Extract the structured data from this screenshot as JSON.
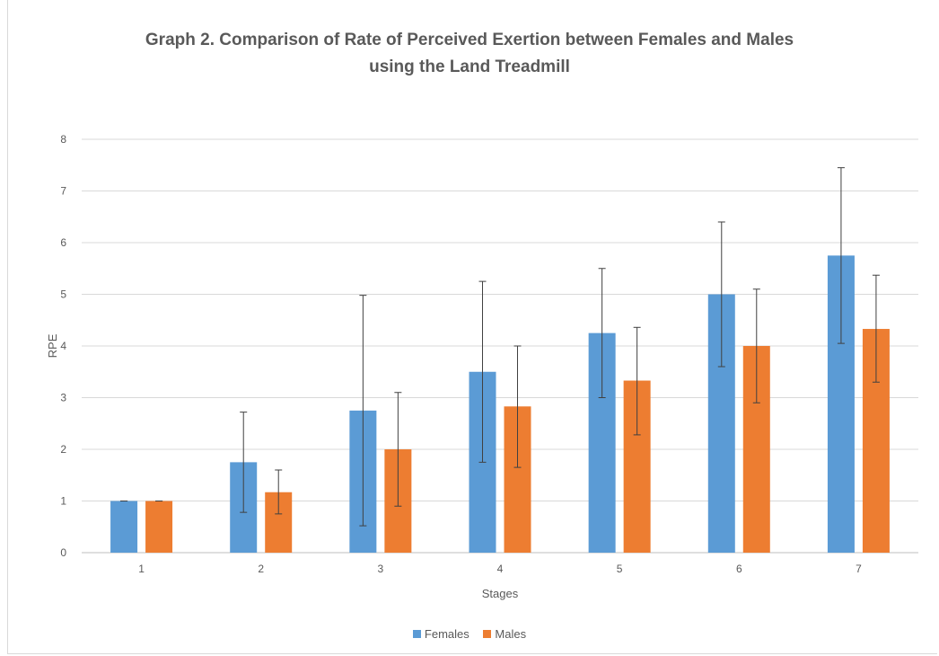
{
  "chart_data": {
    "type": "bar",
    "title_line1": "Graph 2. Comparison of Rate of Perceived Exertion between Females and Males",
    "title_line2": "using the Land Treadmill",
    "xlabel": "Stages",
    "ylabel": "RPE",
    "ylim": [
      0,
      8
    ],
    "yticks": [
      "0",
      "1",
      "2",
      "3",
      "4",
      "5",
      "6",
      "7",
      "8"
    ],
    "categories": [
      "1",
      "2",
      "3",
      "4",
      "5",
      "6",
      "7"
    ],
    "grid": true,
    "legend_position": "bottom",
    "series": [
      {
        "name": "Females",
        "color": "#5b9bd5",
        "values": [
          1.0,
          1.75,
          2.75,
          3.5,
          4.25,
          5.0,
          5.75
        ],
        "error_low": [
          1.0,
          0.78,
          0.52,
          1.75,
          3.0,
          3.6,
          4.05
        ],
        "error_high": [
          1.0,
          2.72,
          4.98,
          5.25,
          5.5,
          6.4,
          7.45
        ]
      },
      {
        "name": "Males",
        "color": "#ed7d31",
        "values": [
          1.0,
          1.17,
          2.0,
          2.83,
          3.33,
          4.0,
          4.33
        ],
        "error_low": [
          1.0,
          0.75,
          0.9,
          1.65,
          2.28,
          2.9,
          3.3
        ],
        "error_high": [
          1.0,
          1.6,
          3.1,
          4.0,
          4.36,
          5.1,
          5.37
        ]
      }
    ]
  }
}
